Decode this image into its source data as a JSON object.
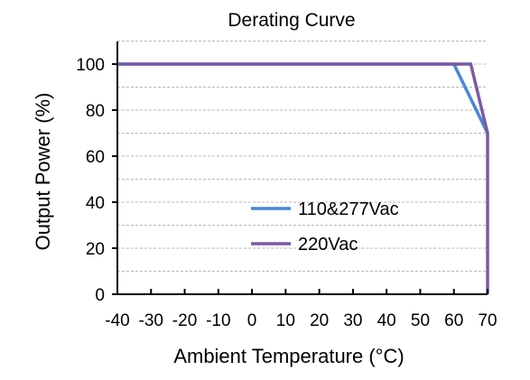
{
  "chart_data": {
    "type": "line",
    "title": "Derating Curve",
    "xlabel": "Ambient Temperature (°C)",
    "ylabel": "Output Power (%)",
    "xlim": [
      -40,
      70
    ],
    "ylim": [
      0,
      100
    ],
    "x_ticks": [
      -40,
      -30,
      -20,
      -10,
      0,
      10,
      20,
      30,
      40,
      50,
      60,
      70
    ],
    "y_ticks": [
      0,
      20,
      40,
      60,
      80,
      100
    ],
    "grid": true,
    "legend_position": "lower-right",
    "series": [
      {
        "name": "110&277Vac",
        "color": "#4a86d8",
        "points": [
          [
            -40,
            100
          ],
          [
            60,
            100
          ],
          [
            70,
            70
          ]
        ]
      },
      {
        "name": "220Vac",
        "color": "#7a5aa6",
        "points": [
          [
            -40,
            100
          ],
          [
            65,
            100
          ],
          [
            70,
            70
          ],
          [
            70,
            0
          ]
        ]
      }
    ]
  }
}
